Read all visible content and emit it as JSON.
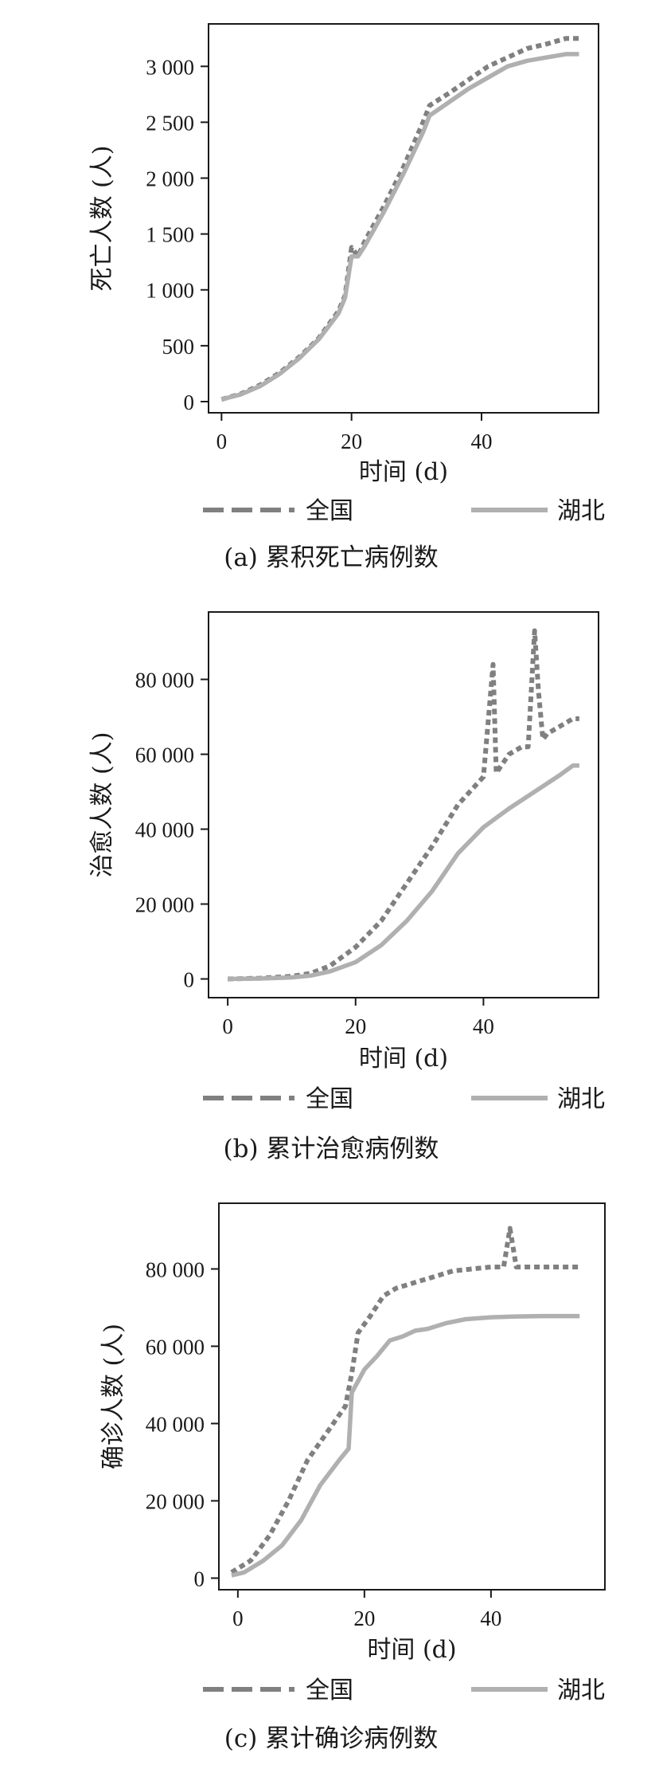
{
  "colors": {
    "national": "#808080",
    "hubei": "#b0b0b0",
    "axis": "#1a1a1a"
  },
  "chart_data": [
    {
      "type": "line",
      "caption": "(a) 累积死亡病例数",
      "xlabel": "时间 (d)",
      "ylabel": "死亡人数 (人)",
      "xlim": [
        -2,
        58
      ],
      "ylim": [
        -100,
        3380
      ],
      "xticks": [
        0,
        20,
        40
      ],
      "xtick_labels": [
        "0",
        "20",
        "40"
      ],
      "yticks": [
        0,
        500,
        1000,
        1500,
        2000,
        2500,
        3000
      ],
      "ytick_labels": [
        "0",
        "500",
        "1 000",
        "1 500",
        "2 000",
        "2 500",
        "3 000"
      ],
      "legend": {
        "placement": "bottom",
        "entries": [
          "全国",
          "湖北"
        ]
      },
      "series": [
        {
          "name": "全国",
          "style": "dashed",
          "x": [
            0,
            3,
            6,
            9,
            12,
            15,
            18,
            19,
            20,
            21,
            22,
            25,
            28,
            31,
            32,
            35,
            38,
            41,
            44,
            47,
            50,
            53,
            55
          ],
          "y": [
            20,
            70,
            150,
            260,
            400,
            570,
            810,
            950,
            1380,
            1300,
            1430,
            1750,
            2100,
            2500,
            2650,
            2760,
            2880,
            3000,
            3080,
            3160,
            3200,
            3250,
            3250
          ]
        },
        {
          "name": "湖北",
          "style": "solid",
          "x": [
            0,
            3,
            6,
            9,
            12,
            15,
            18,
            19,
            20,
            21,
            22,
            25,
            28,
            31,
            32,
            35,
            38,
            41,
            44,
            47,
            50,
            53,
            55
          ],
          "y": [
            20,
            65,
            140,
            250,
            390,
            560,
            790,
            930,
            1300,
            1300,
            1390,
            1700,
            2040,
            2410,
            2560,
            2680,
            2800,
            2900,
            3000,
            3050,
            3080,
            3110,
            3110
          ]
        }
      ]
    },
    {
      "type": "line",
      "caption": "(b) 累计治愈病例数",
      "xlabel": "时间 (d)",
      "ylabel": "治愈人数 (人)",
      "xlim": [
        -3,
        58
      ],
      "ylim": [
        -5000,
        98000
      ],
      "xticks": [
        0,
        20,
        40
      ],
      "xtick_labels": [
        "0",
        "20",
        "40"
      ],
      "yticks": [
        0,
        20000,
        40000,
        60000,
        80000
      ],
      "ytick_labels": [
        "0",
        "20 000",
        "40 000",
        "60 000",
        "80 000"
      ],
      "legend": {
        "placement": "bottom",
        "entries": [
          "全国",
          "湖北"
        ]
      },
      "series": [
        {
          "name": "全国",
          "style": "dashed",
          "x": [
            0,
            5,
            10,
            13,
            16,
            20,
            24,
            28,
            32,
            36,
            40,
            41.5,
            42,
            43,
            44,
            46,
            47,
            48,
            48.6,
            49.3,
            50,
            52,
            54,
            55
          ],
          "y": [
            0,
            200,
            700,
            1500,
            3500,
            8500,
            15500,
            25500,
            35500,
            46500,
            54000,
            84000,
            55000,
            57500,
            60000,
            62000,
            62000,
            93000,
            77000,
            64000,
            65500,
            67500,
            69500,
            69500
          ]
        },
        {
          "name": "湖北",
          "style": "solid",
          "x": [
            0,
            5,
            10,
            13,
            16,
            20,
            24,
            28,
            32,
            36,
            40,
            44,
            48,
            52,
            54,
            55
          ],
          "y": [
            0,
            100,
            400,
            900,
            2000,
            4500,
            9000,
            15500,
            23500,
            33500,
            40500,
            45500,
            50000,
            54500,
            57000,
            57000
          ]
        }
      ]
    },
    {
      "type": "line",
      "caption": "(c) 累计确诊病例数",
      "xlabel": "时间 (d)",
      "ylabel": "确诊人数 (人)",
      "xlim": [
        -3,
        58
      ],
      "ylim": [
        -3000,
        97000
      ],
      "xticks": [
        0,
        20,
        40
      ],
      "xtick_labels": [
        "0",
        "20",
        "40"
      ],
      "yticks": [
        0,
        20000,
        40000,
        60000,
        80000
      ],
      "ytick_labels": [
        "0",
        "20 000",
        "40 000",
        "60 000",
        "80 000"
      ],
      "legend": {
        "placement": "bottom",
        "entries": [
          "全国",
          "湖北"
        ]
      },
      "series": [
        {
          "name": "全国",
          "style": "dashed",
          "x": [
            -1,
            2,
            5,
            8,
            11,
            14,
            17,
            18,
            19,
            21,
            23,
            25,
            28,
            31,
            34,
            37,
            40,
            42,
            43,
            44,
            45,
            48,
            51,
            54
          ],
          "y": [
            1500,
            4500,
            11000,
            20000,
            30500,
            37500,
            44500,
            53000,
            63500,
            68000,
            73000,
            75000,
            76500,
            78000,
            79500,
            80000,
            80500,
            80500,
            90500,
            80500,
            80500,
            80500,
            80500,
            80500
          ]
        },
        {
          "name": "湖北",
          "style": "solid",
          "x": [
            -1,
            1,
            4,
            7,
            10,
            13,
            16,
            17.5,
            18,
            20,
            22,
            24,
            26,
            28,
            30,
            33,
            36,
            40,
            44,
            48,
            51,
            54
          ],
          "y": [
            700,
            1500,
            4500,
            8500,
            15000,
            24000,
            30500,
            33500,
            48000,
            54000,
            57500,
            61500,
            62500,
            64000,
            64500,
            66000,
            67000,
            67500,
            67700,
            67800,
            67800,
            67800
          ]
        }
      ]
    }
  ]
}
